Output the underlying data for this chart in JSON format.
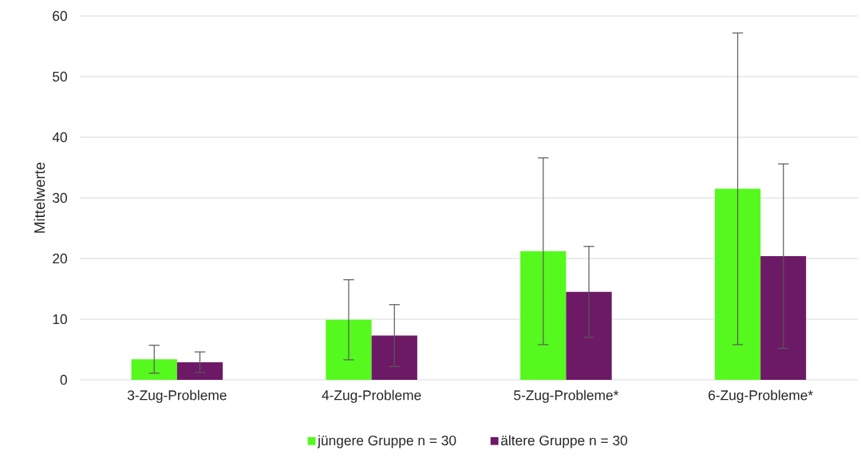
{
  "chart_data": {
    "type": "bar",
    "ylabel": "Mittelwerte",
    "categories": [
      "3-Zug-Probleme",
      "4-Zug-Probleme",
      "5-Zug-Probleme*",
      "6-Zug-Probleme*"
    ],
    "series": [
      {
        "name": "jüngere Gruppe n = 30",
        "color": "#55f91d",
        "values": [
          3.4,
          9.9,
          21.2,
          31.5
        ],
        "errors": [
          2.3,
          6.6,
          15.4,
          25.7
        ]
      },
      {
        "name": "ältere Gruppe n = 30",
        "color": "#6d1a66",
        "values": [
          2.9,
          7.3,
          14.5,
          20.4
        ],
        "errors": [
          1.7,
          5.1,
          7.5,
          15.2
        ]
      }
    ],
    "ylim": [
      0,
      60
    ],
    "yticks": [
      0,
      10,
      20,
      30,
      40,
      50,
      60
    ],
    "grid": "y",
    "legend": "bottom"
  }
}
